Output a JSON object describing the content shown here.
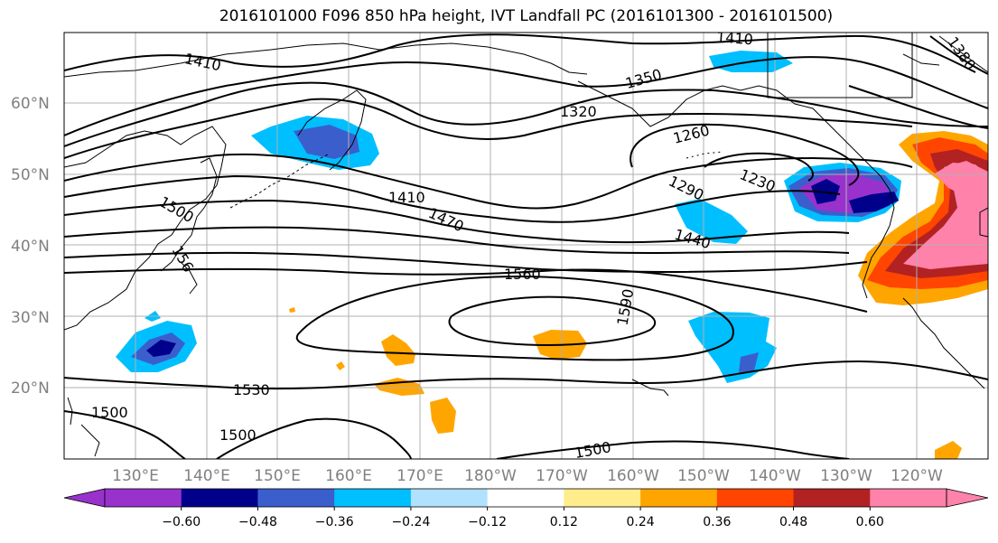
{
  "title": "2016101000 F096 850 hPa height, IVT Landfall PC (2016101300 - 2016101500)",
  "lat_labels": [
    "60°N",
    "50°N",
    "40°N",
    "30°N",
    "20°N"
  ],
  "lon_labels": [
    "130°E",
    "140°E",
    "150°E",
    "160°E",
    "170°E",
    "180°W",
    "170°W",
    "160°W",
    "150°W",
    "140°W",
    "130°W",
    "120°W"
  ],
  "contour_labels": [
    "1410",
    "1410",
    "1350",
    "1380",
    "1320",
    "1260",
    "1410",
    "1290",
    "1230",
    "1500",
    "1470",
    "1440",
    "156",
    "1560",
    "1590",
    "1530",
    "1500",
    "1500",
    "1500"
  ],
  "colorbar": {
    "ticks": [
      "−0.60",
      "−0.48",
      "−0.36",
      "−0.24",
      "−0.12",
      "0.12",
      "0.24",
      "0.36",
      "0.48",
      "0.60"
    ],
    "colors": [
      "#9932CC",
      "#00008B",
      "#3A5FCD",
      "#00BFFF",
      "#B0E2FF",
      "#FFFFFF",
      "#FFEC8B",
      "#FFA500",
      "#FF4500",
      "#B22222",
      "#FF82AB"
    ]
  }
}
